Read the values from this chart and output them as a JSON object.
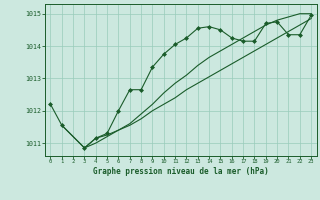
{
  "title": "Graphe pression niveau de la mer (hPa)",
  "bg_color": "#cce8df",
  "grid_color": "#99ccbb",
  "line_color": "#1a5c2a",
  "xlim": [
    -0.5,
    23.5
  ],
  "ylim": [
    1010.6,
    1015.3
  ],
  "yticks": [
    1011,
    1012,
    1013,
    1014,
    1015
  ],
  "xticks": [
    0,
    1,
    2,
    3,
    4,
    5,
    6,
    7,
    8,
    9,
    10,
    11,
    12,
    13,
    14,
    15,
    16,
    17,
    18,
    19,
    20,
    21,
    22,
    23
  ],
  "series1_x": [
    0,
    1,
    3,
    4,
    5,
    6,
    7,
    8,
    9,
    10,
    11,
    12,
    13,
    14,
    15,
    16,
    17,
    18,
    19,
    20,
    21,
    22,
    23
  ],
  "series1_y": [
    1012.2,
    1011.55,
    1010.85,
    1011.15,
    1011.3,
    1012.0,
    1012.65,
    1012.65,
    1013.35,
    1013.75,
    1014.05,
    1014.25,
    1014.55,
    1014.6,
    1014.5,
    1014.25,
    1014.15,
    1014.15,
    1014.7,
    1014.75,
    1014.35,
    1014.35,
    1014.95
  ],
  "series2_x": [
    1,
    3,
    4,
    5,
    6,
    7,
    8,
    9,
    10,
    11,
    12,
    13,
    14,
    15,
    16,
    17,
    18,
    19,
    20,
    21,
    22,
    23
  ],
  "series2_y": [
    1011.55,
    1010.85,
    1011.15,
    1011.25,
    1011.4,
    1011.6,
    1011.9,
    1012.2,
    1012.55,
    1012.85,
    1013.1,
    1013.4,
    1013.65,
    1013.85,
    1014.05,
    1014.25,
    1014.45,
    1014.65,
    1014.8,
    1014.9,
    1015.0,
    1015.0
  ],
  "series3_x": [
    3,
    4,
    5,
    6,
    7,
    8,
    9,
    10,
    11,
    12,
    13,
    14,
    15,
    16,
    17,
    18,
    19,
    20,
    21,
    22,
    23
  ],
  "series3_y": [
    1010.85,
    1011.0,
    1011.2,
    1011.4,
    1011.55,
    1011.75,
    1012.0,
    1012.2,
    1012.4,
    1012.65,
    1012.85,
    1013.05,
    1013.25,
    1013.45,
    1013.65,
    1013.85,
    1014.05,
    1014.25,
    1014.45,
    1014.65,
    1014.85
  ]
}
